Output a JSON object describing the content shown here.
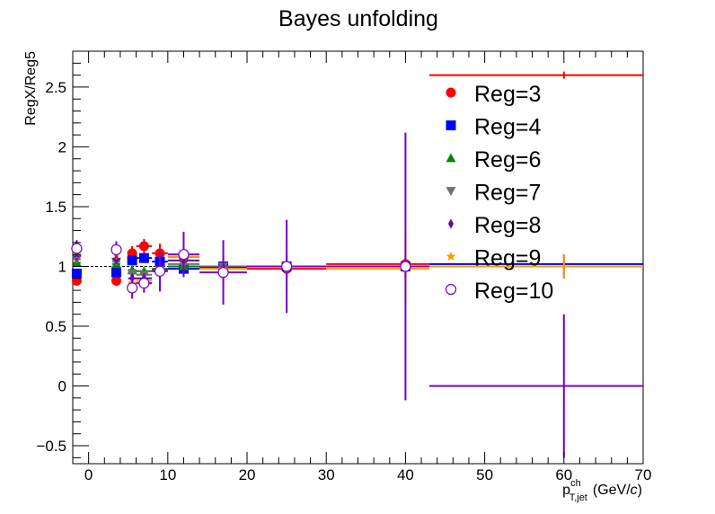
{
  "chart_data": {
    "type": "scatter",
    "title": "Bayes unfolding",
    "xlabel": "p",
    "xlabel_sup": "ch",
    "xlabel_sub": "T,jet",
    "xlabel_unit_prefix": "(GeV/",
    "xlabel_unit_italic": "c",
    "xlabel_unit_suffix": ")",
    "ylabel": "RegX/Reg5",
    "xlim": [
      -2,
      70
    ],
    "ylim": [
      -0.65,
      2.8
    ],
    "x_ticks": [
      0,
      10,
      20,
      30,
      40,
      50,
      60,
      70
    ],
    "y_ticks": [
      -0.5,
      0,
      0.5,
      1,
      1.5,
      2,
      2.5
    ],
    "x_tick_labels": [
      "0",
      "10",
      "20",
      "30",
      "40",
      "50",
      "60",
      "70"
    ],
    "y_tick_labels": [
      "−0.5",
      "0",
      "0.5",
      "1",
      "1.5",
      "2",
      "2.5"
    ],
    "reference_line": 1,
    "legend_position": "top-right",
    "bins": [
      {
        "center": -1.5,
        "lo": -2,
        "hi": -1
      },
      {
        "center": 3.5,
        "lo": 3,
        "hi": 4
      },
      {
        "center": 5.5,
        "lo": 5,
        "hi": 6
      },
      {
        "center": 7,
        "lo": 6,
        "hi": 8
      },
      {
        "center": 9,
        "lo": 8,
        "hi": 10
      },
      {
        "center": 12,
        "lo": 10,
        "hi": 14
      },
      {
        "center": 17,
        "lo": 14,
        "hi": 20
      },
      {
        "center": 25,
        "lo": 20,
        "hi": 30
      },
      {
        "center": 40,
        "lo": 30,
        "hi": 43
      },
      {
        "center": 60,
        "lo": 43,
        "hi": 70
      }
    ],
    "series": [
      {
        "name": "Reg=3",
        "marker": "circle",
        "color": "#ff0000",
        "values": [
          0.88,
          0.88,
          1.11,
          1.17,
          1.11,
          1.08,
          0.99,
          0.98,
          1.02,
          2.6
        ],
        "errors": [
          0.03,
          0.03,
          0.06,
          0.06,
          0.08,
          0.04,
          0.04,
          0.02,
          0.02,
          0.03
        ]
      },
      {
        "name": "Reg=4",
        "marker": "square",
        "color": "#0000ff",
        "values": [
          0.94,
          0.95,
          1.05,
          1.07,
          1.04,
          0.98,
          1.0,
          1.0,
          1.0,
          1.02
        ],
        "errors": [
          0.02,
          0.02,
          0.03,
          0.03,
          0.04,
          0.02,
          0.02,
          0.01,
          0.01,
          0.01
        ]
      },
      {
        "name": "Reg=6",
        "marker": "triangle-up",
        "color": "#008800",
        "values": [
          1.03,
          1.02,
          0.97,
          0.96,
          0.98,
          1.0,
          1.0,
          1.0,
          1.0,
          1.0
        ],
        "errors": [
          0.02,
          0.02,
          0.02,
          0.02,
          0.02,
          0.02,
          0.01,
          0.01,
          0.01,
          0.01
        ]
      },
      {
        "name": "Reg=7",
        "marker": "triangle-down",
        "color": "#707070",
        "values": [
          1.06,
          1.04,
          0.94,
          0.93,
          0.97,
          1.02,
          1.0,
          1.0,
          1.0,
          1.0
        ],
        "errors": [
          0.03,
          0.03,
          0.03,
          0.03,
          0.04,
          0.03,
          0.02,
          0.01,
          0.01,
          0.01
        ]
      },
      {
        "name": "Reg=8",
        "marker": "diamond",
        "color": "#660099",
        "values": [
          1.09,
          1.06,
          0.9,
          0.9,
          0.97,
          1.05,
          0.99,
          1.0,
          1.0,
          1.0
        ],
        "errors": [
          0.04,
          0.04,
          0.04,
          0.04,
          0.06,
          0.05,
          0.1,
          0.1,
          0.1,
          0.1
        ]
      },
      {
        "name": "Reg=9",
        "marker": "star",
        "color": "#ff9900",
        "values": [
          1.12,
          1.11,
          0.86,
          0.88,
          0.96,
          1.08,
          0.98,
          1.0,
          0.98,
          1.0
        ],
        "errors": [
          0.05,
          0.05,
          0.05,
          0.05,
          0.07,
          0.06,
          0.15,
          0.2,
          0.3,
          0.1
        ]
      },
      {
        "name": "Reg=10",
        "marker": "open-circle",
        "color": "#7700cc",
        "values": [
          1.15,
          1.14,
          0.82,
          0.86,
          0.96,
          1.1,
          0.95,
          1.0,
          1.0,
          0.0
        ],
        "errors": [
          0.07,
          0.07,
          0.09,
          0.08,
          0.17,
          0.19,
          0.27,
          0.39,
          1.12,
          0.6
        ]
      }
    ]
  }
}
